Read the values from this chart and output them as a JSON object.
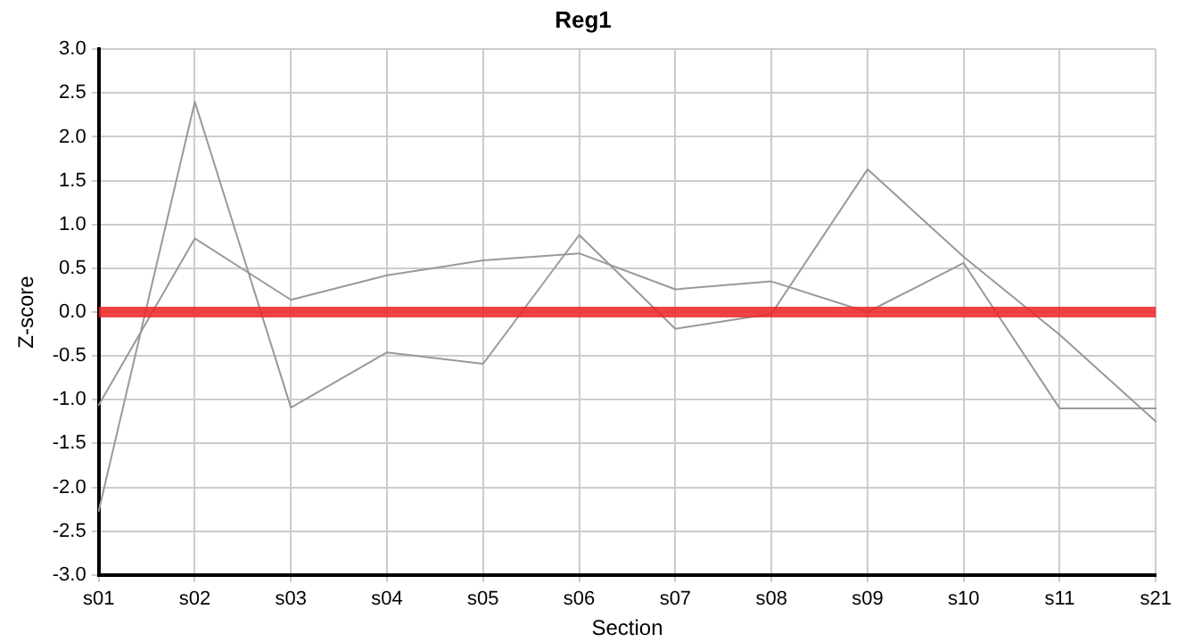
{
  "chart_data": {
    "type": "line",
    "title": "Reg1",
    "xlabel": "Section",
    "ylabel": "Z-score",
    "categories": [
      "s01",
      "s02",
      "s03",
      "s04",
      "s05",
      "s06",
      "s07",
      "s08",
      "s09",
      "s10",
      "s11",
      "s21"
    ],
    "series": [
      {
        "color": "#999999",
        "values": [
          -2.27,
          2.4,
          -1.09,
          -0.46,
          -0.59,
          0.88,
          -0.19,
          -0.02,
          1.63,
          0.63,
          -0.26,
          -1.25
        ]
      },
      {
        "color": "#999999",
        "values": [
          -1.06,
          0.84,
          0.14,
          0.42,
          0.59,
          0.67,
          0.26,
          0.35,
          0.0,
          0.56,
          -1.1,
          -1.1
        ]
      }
    ],
    "ylim": [
      -3,
      3
    ],
    "yticks": [
      {
        "value": -3,
        "label": "-3.0"
      },
      {
        "value": -2.5,
        "label": "-2.5"
      },
      {
        "value": -2,
        "label": "-2.0"
      },
      {
        "value": -1.5,
        "label": "-1.5"
      },
      {
        "value": -1,
        "label": "-1.0"
      },
      {
        "value": -0.5,
        "label": "-0.5"
      },
      {
        "value": 0,
        "label": "0.0"
      },
      {
        "value": 0.5,
        "label": "0.5"
      },
      {
        "value": 1,
        "label": "1.0"
      },
      {
        "value": 1.5,
        "label": "1.5"
      },
      {
        "value": 2,
        "label": "2.0"
      },
      {
        "value": 2.5,
        "label": "2.5"
      },
      {
        "value": 3,
        "label": "3.0"
      }
    ],
    "ref_lines": [
      {
        "axis": "y",
        "value": 0,
        "color": "#ee2222"
      }
    ],
    "grid": true,
    "legend": false,
    "marker": "none",
    "line_style": "solid"
  }
}
